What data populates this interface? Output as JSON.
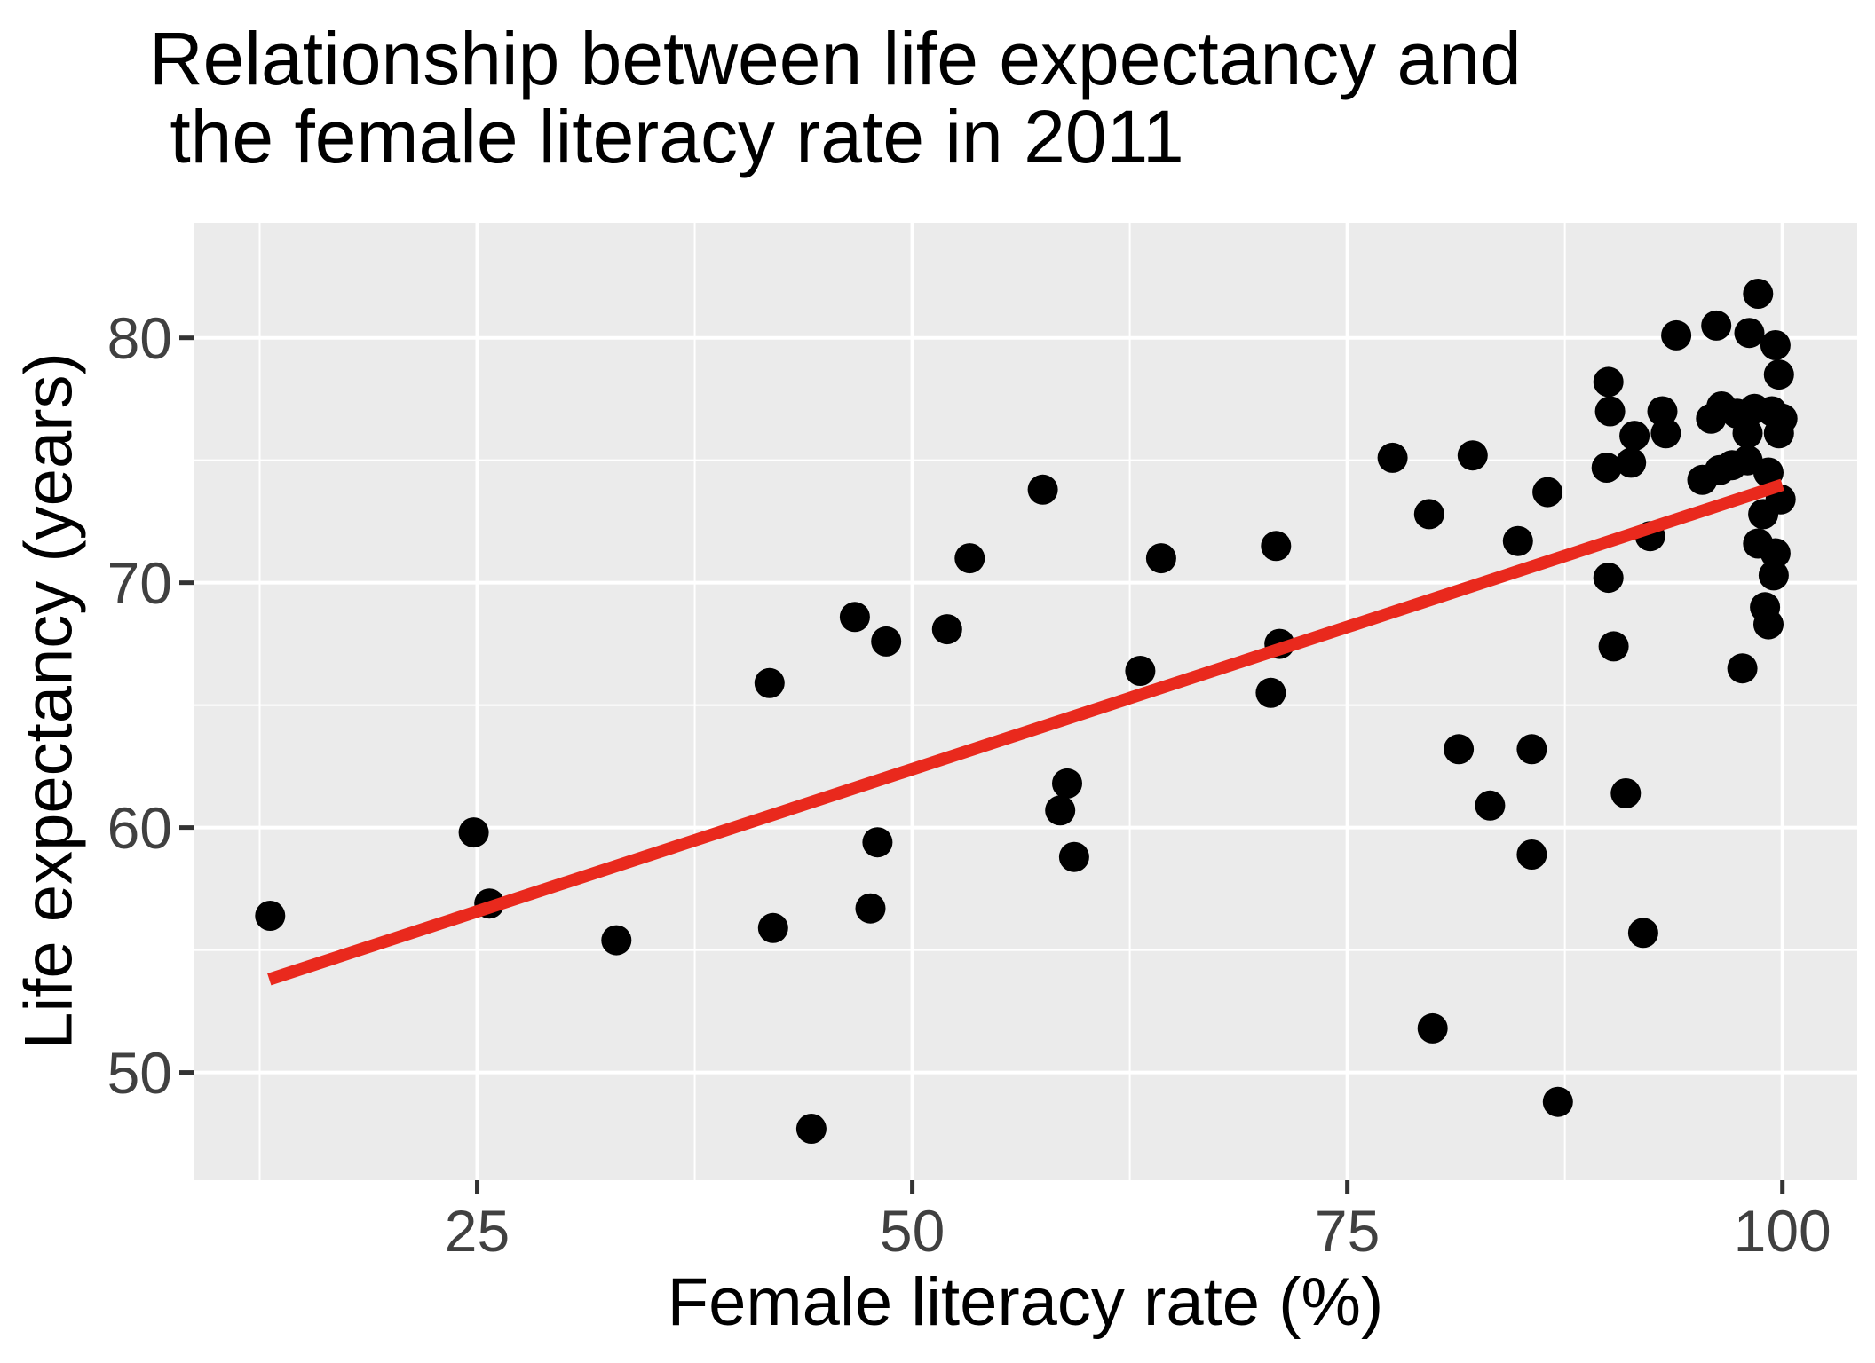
{
  "title": {
    "line1": "Relationship between life expectancy and",
    "line2": " the female literacy rate in 2011"
  },
  "axes": {
    "x": {
      "label": "Female literacy rate (%)",
      "ticks": [
        25,
        50,
        75,
        100
      ],
      "minor_ticks": [
        12.5,
        37.5,
        62.5,
        87.5
      ]
    },
    "y": {
      "label": "Life expectancy (years)",
      "ticks": [
        50,
        60,
        70,
        80
      ],
      "minor_ticks": [
        55,
        65,
        75
      ]
    }
  },
  "style": {
    "panel_bg": "#EBEBEB",
    "grid_color": "#FFFFFF",
    "point_color": "#000000",
    "trend_color": "#E9291D",
    "tick_mark_color": "#333333",
    "tick_label_color": "#404040",
    "text_color": "#000000"
  },
  "chart_data": {
    "type": "scatter",
    "title": "Relationship between life expectancy and the female literacy rate in 2011",
    "xlabel": "Female literacy rate (%)",
    "ylabel": "Life expectancy (years)",
    "xlim": [
      8.7,
      104.3
    ],
    "ylim": [
      45.6,
      84.7
    ],
    "grid": true,
    "legend_position": "none",
    "points": [
      [
        13.1,
        56.4
      ],
      [
        24.8,
        59.8
      ],
      [
        25.7,
        56.9
      ],
      [
        33.0,
        55.4
      ],
      [
        41.8,
        65.9
      ],
      [
        42.0,
        55.9
      ],
      [
        44.2,
        47.7
      ],
      [
        46.7,
        68.6
      ],
      [
        48.5,
        67.6
      ],
      [
        48.0,
        59.4
      ],
      [
        47.6,
        56.7
      ],
      [
        52.0,
        68.1
      ],
      [
        53.3,
        71.0
      ],
      [
        57.5,
        73.8
      ],
      [
        58.9,
        61.8
      ],
      [
        58.5,
        60.7
      ],
      [
        59.3,
        58.8
      ],
      [
        63.1,
        66.4
      ],
      [
        64.3,
        71.0
      ],
      [
        70.9,
        71.5
      ],
      [
        71.1,
        67.5
      ],
      [
        70.6,
        65.5
      ],
      [
        77.6,
        75.1
      ],
      [
        79.7,
        72.8
      ],
      [
        82.2,
        75.2
      ],
      [
        84.8,
        71.7
      ],
      [
        86.5,
        73.7
      ],
      [
        79.9,
        51.8
      ],
      [
        87.1,
        48.8
      ],
      [
        81.4,
        63.2
      ],
      [
        85.6,
        63.2
      ],
      [
        83.2,
        60.9
      ],
      [
        85.6,
        58.9
      ],
      [
        91.0,
        61.4
      ],
      [
        92.0,
        55.7
      ],
      [
        90.3,
        67.4
      ],
      [
        97.7,
        66.5
      ],
      [
        92.4,
        71.9
      ],
      [
        90.0,
        70.2
      ],
      [
        90.0,
        78.2
      ],
      [
        90.1,
        77.0
      ],
      [
        93.1,
        77.0
      ],
      [
        93.3,
        76.1
      ],
      [
        95.9,
        76.7
      ],
      [
        96.5,
        77.2
      ],
      [
        97.4,
        76.9
      ],
      [
        98.4,
        77.1
      ],
      [
        99.4,
        77.0
      ],
      [
        100.0,
        76.7
      ],
      [
        99.8,
        76.1
      ],
      [
        98.0,
        76.1
      ],
      [
        91.5,
        76.0
      ],
      [
        91.3,
        74.9
      ],
      [
        89.9,
        74.7
      ],
      [
        95.4,
        74.2
      ],
      [
        96.4,
        74.6
      ],
      [
        97.1,
        74.8
      ],
      [
        98.0,
        75.0
      ],
      [
        99.2,
        74.5
      ],
      [
        99.9,
        73.4
      ],
      [
        98.9,
        72.8
      ],
      [
        98.6,
        71.6
      ],
      [
        99.6,
        71.2
      ],
      [
        99.5,
        70.3
      ],
      [
        99.0,
        69.0
      ],
      [
        99.2,
        68.3
      ],
      [
        93.9,
        80.1
      ],
      [
        96.2,
        80.5
      ],
      [
        98.1,
        80.2
      ],
      [
        99.6,
        79.7
      ],
      [
        99.8,
        78.5
      ],
      [
        98.6,
        81.8
      ]
    ],
    "trend_line": {
      "type": "linear",
      "x1": 13.05,
      "y1": 53.8,
      "x2": 100.0,
      "y2": 74.0
    }
  }
}
